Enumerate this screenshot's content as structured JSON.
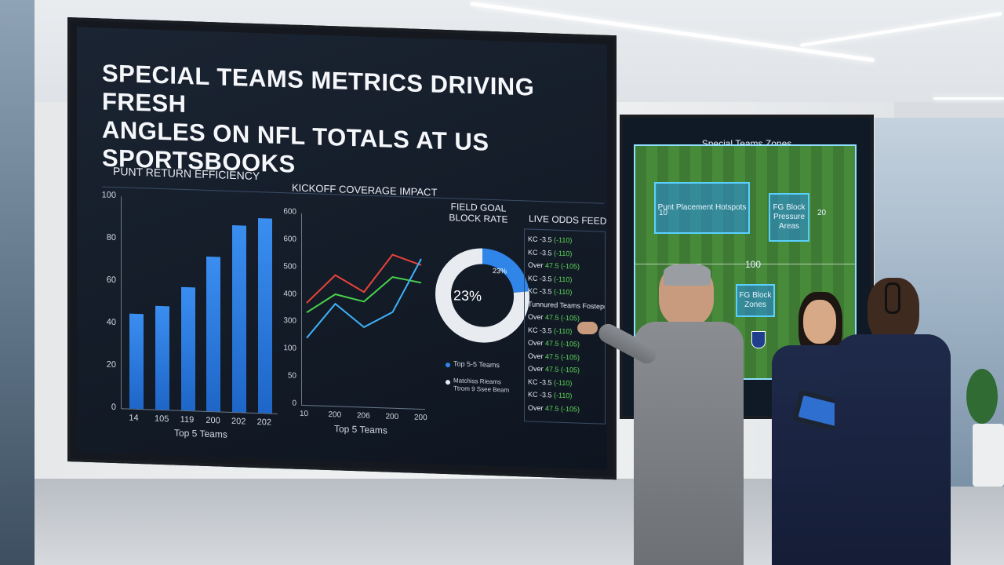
{
  "headline": {
    "line1": "SPECIAL TEAMS METRICS DRIVING FRESH",
    "line2": "ANGLES ON NFL TOTALS AT US SPORTSBOOKS"
  },
  "punt_chart": {
    "title": "PUNT RETURN EFFICIENCY",
    "xlabel": "Top 5 Teams",
    "y_ticks": [
      "100",
      "80",
      "60",
      "40",
      "20",
      "0"
    ],
    "x_ticks": [
      "14",
      "105",
      "119",
      "200",
      "202",
      "202"
    ]
  },
  "kickoff_chart": {
    "title": "KICKOFF COVERAGE IMPACT",
    "xlabel": "Top 5 Teams",
    "y_ticks": [
      "600",
      "600",
      "500",
      "400",
      "300",
      "100",
      "50",
      "0"
    ],
    "x_ticks": [
      "10",
      "200",
      "206",
      "200",
      "200"
    ]
  },
  "fg_block": {
    "title_line1": "FIELD GOAL",
    "title_line2": "BLOCK RATE",
    "center_value": "23%",
    "slice_label": "23%",
    "legend1": "Top 5-5 Teams",
    "legend2_line1": "Matchiss Rieams",
    "legend2_line2": "Ttrom 9 Ssee Beam"
  },
  "live_odds": {
    "title": "LIVE ODDS FEED",
    "rows": [
      {
        "a": "KC -3.5",
        "b": "(-110)"
      },
      {
        "a": "KC -3.5",
        "b": "(-110)"
      },
      {
        "a": "Over",
        "b": "47.5 (-105)"
      },
      {
        "a": "KC -3.5",
        "b": "(-110)"
      },
      {
        "a": "KC -3.5",
        "b": "(-110)"
      },
      {
        "a": "Tunnured Teams Fostepurt",
        "b": ""
      },
      {
        "a": "Over",
        "b": "47.5 (-105)"
      },
      {
        "a": "KC -3.5",
        "b": "(-110)"
      },
      {
        "a": "Over",
        "b": "47.5 (-105)"
      },
      {
        "a": "Over",
        "b": "47.5 (-105)"
      },
      {
        "a": "Over",
        "b": "47.5 (-105)"
      },
      {
        "a": "KC -3.5",
        "b": "(-110)"
      },
      {
        "a": "KC -3.5",
        "b": "(-110)"
      },
      {
        "a": "Over",
        "b": "47.5 (-105)"
      }
    ]
  },
  "zones": {
    "title": "Special Teams Zones",
    "zone1": "Punt Placement Hotspots",
    "zone2": "FG Block Pressure Areas",
    "zone3": "FG Block Zones",
    "yard_labels": [
      "10",
      "20",
      "100",
      "10"
    ]
  },
  "chart_data": [
    {
      "type": "bar",
      "title": "PUNT RETURN EFFICIENCY",
      "xlabel": "Top 5 Teams",
      "categories": [
        "14",
        "105",
        "119",
        "200",
        "202",
        "202"
      ],
      "values": [
        45,
        49,
        58,
        73,
        88,
        92
      ],
      "ylim": [
        0,
        100
      ]
    },
    {
      "type": "line",
      "title": "KICKOFF COVERAGE IMPACT",
      "xlabel": "Top 5 Teams",
      "x": [
        "10",
        "200",
        "206",
        "200",
        "200"
      ],
      "series": [
        {
          "color": "#e8433a",
          "values": [
            320,
            410,
            360,
            480,
            450
          ]
        },
        {
          "color": "#48d24a",
          "values": [
            290,
            350,
            330,
            410,
            395
          ]
        },
        {
          "color": "#3fb0f5",
          "values": [
            210,
            320,
            250,
            300,
            470
          ]
        }
      ],
      "ylim": [
        0,
        600
      ]
    },
    {
      "type": "pie",
      "title": "FIELD GOAL BLOCK RATE",
      "values": [
        23,
        77
      ],
      "colors": [
        "#2f86e8",
        "#e8ecf1"
      ]
    }
  ]
}
